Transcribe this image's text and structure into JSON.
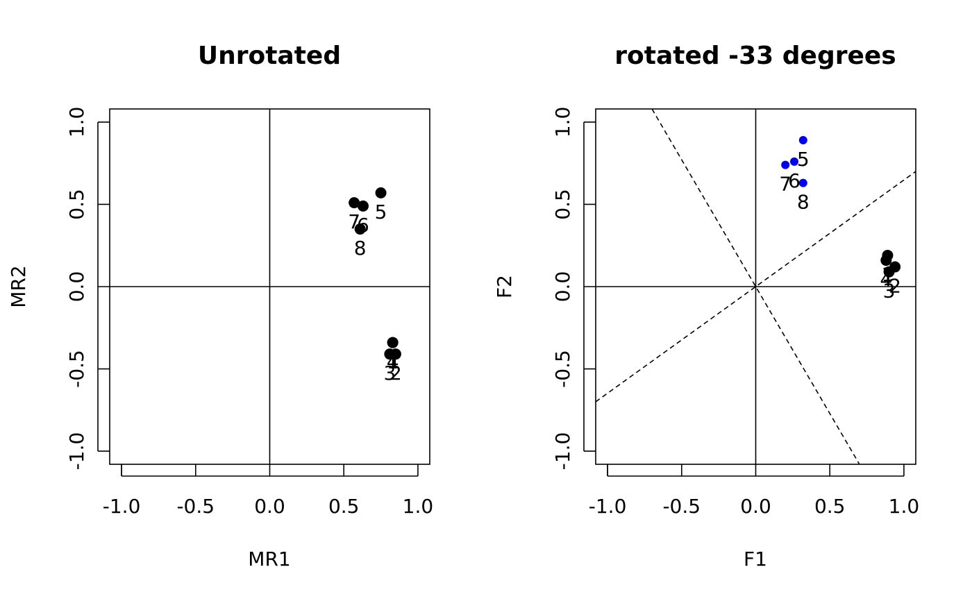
{
  "chart_data": [
    {
      "type": "scatter",
      "title": "Unrotated",
      "xlabel": "MR1",
      "ylabel": "MR2",
      "xlim": [
        -1.0,
        1.0
      ],
      "ylim": [
        -1.0,
        1.0
      ],
      "xticks": [
        "-1.0",
        "-0.5",
        "0.0",
        "0.5",
        "1.0"
      ],
      "yticks": [
        "-1.0",
        "-0.5",
        "0.0",
        "0.5",
        "1.0"
      ],
      "grid": false,
      "legend": "none",
      "reference_lines": [
        "x=0",
        "y=0"
      ],
      "points": [
        {
          "label": "1",
          "x": 0.83,
          "y": -0.34,
          "color": "#000000"
        },
        {
          "label": "2",
          "x": 0.85,
          "y": -0.41,
          "color": "#000000"
        },
        {
          "label": "3",
          "x": 0.81,
          "y": -0.41,
          "color": "#000000"
        },
        {
          "label": "4",
          "x": 0.83,
          "y": -0.34,
          "color": "#000000"
        },
        {
          "label": "5",
          "x": 0.75,
          "y": 0.57,
          "color": "#000000"
        },
        {
          "label": "6",
          "x": 0.63,
          "y": 0.49,
          "color": "#000000"
        },
        {
          "label": "7",
          "x": 0.57,
          "y": 0.51,
          "color": "#000000"
        },
        {
          "label": "8",
          "x": 0.61,
          "y": 0.35,
          "color": "#000000"
        }
      ]
    },
    {
      "type": "scatter",
      "title": "rotated -33 degrees",
      "xlabel": "F1",
      "ylabel": "F2",
      "xlim": [
        -1.0,
        1.0
      ],
      "ylim": [
        -1.0,
        1.0
      ],
      "xticks": [
        "-1.0",
        "-0.5",
        "0.0",
        "0.5",
        "1.0"
      ],
      "yticks": [
        "-1.0",
        "-0.5",
        "0.0",
        "0.5",
        "1.0"
      ],
      "grid": false,
      "legend": "none",
      "reference_lines": [
        "x=0",
        "y=0"
      ],
      "dashed_lines": [
        {
          "from": [
            -1.08,
            -0.7
          ],
          "to": [
            1.08,
            0.7
          ]
        },
        {
          "from": [
            -0.7,
            1.08
          ],
          "to": [
            0.7,
            -1.08
          ]
        }
      ],
      "points": [
        {
          "label": "1",
          "x": 0.89,
          "y": 0.19,
          "color": "#000000"
        },
        {
          "label": "2",
          "x": 0.94,
          "y": 0.12,
          "color": "#000000"
        },
        {
          "label": "3",
          "x": 0.9,
          "y": 0.09,
          "color": "#000000"
        },
        {
          "label": "4",
          "x": 0.88,
          "y": 0.16,
          "color": "#000000"
        },
        {
          "label": "5",
          "x": 0.32,
          "y": 0.89,
          "color": "#0000ee"
        },
        {
          "label": "6",
          "x": 0.26,
          "y": 0.76,
          "color": "#0000ee"
        },
        {
          "label": "7",
          "x": 0.2,
          "y": 0.74,
          "color": "#0000ee"
        },
        {
          "label": "8",
          "x": 0.32,
          "y": 0.63,
          "color": "#0000ee"
        }
      ]
    }
  ]
}
